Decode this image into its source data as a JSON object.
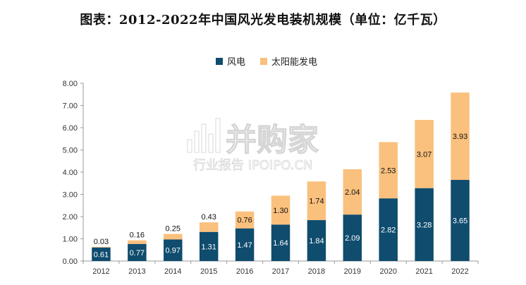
{
  "chart_data": {
    "type": "bar",
    "stacked": true,
    "title": "图表：2012-2022年中国风光发电装机规模（单位：亿千瓦）",
    "categories": [
      "2012",
      "2013",
      "2014",
      "2015",
      "2016",
      "2017",
      "2018",
      "2019",
      "2020",
      "2021",
      "2022"
    ],
    "series": [
      {
        "name": "风电",
        "color": "#0f4c6e",
        "values": [
          0.61,
          0.77,
          0.97,
          1.31,
          1.47,
          1.64,
          1.84,
          2.09,
          2.82,
          3.28,
          3.65
        ]
      },
      {
        "name": "太阳能发电",
        "color": "#fac07d",
        "values": [
          0.03,
          0.16,
          0.25,
          0.43,
          0.76,
          1.3,
          1.74,
          2.04,
          2.53,
          3.07,
          3.93
        ]
      }
    ],
    "yticks": [
      "0.00",
      "1.00",
      "2.00",
      "3.00",
      "4.00",
      "5.00",
      "6.00",
      "7.00",
      "8.00"
    ],
    "ylim": [
      0,
      8
    ],
    "legend_position": "top-center",
    "grid": false
  },
  "watermark": {
    "main": "并购家",
    "sub": "行业报告 IPOIPO.CN",
    "icon": "bar-chart-logo-icon"
  }
}
